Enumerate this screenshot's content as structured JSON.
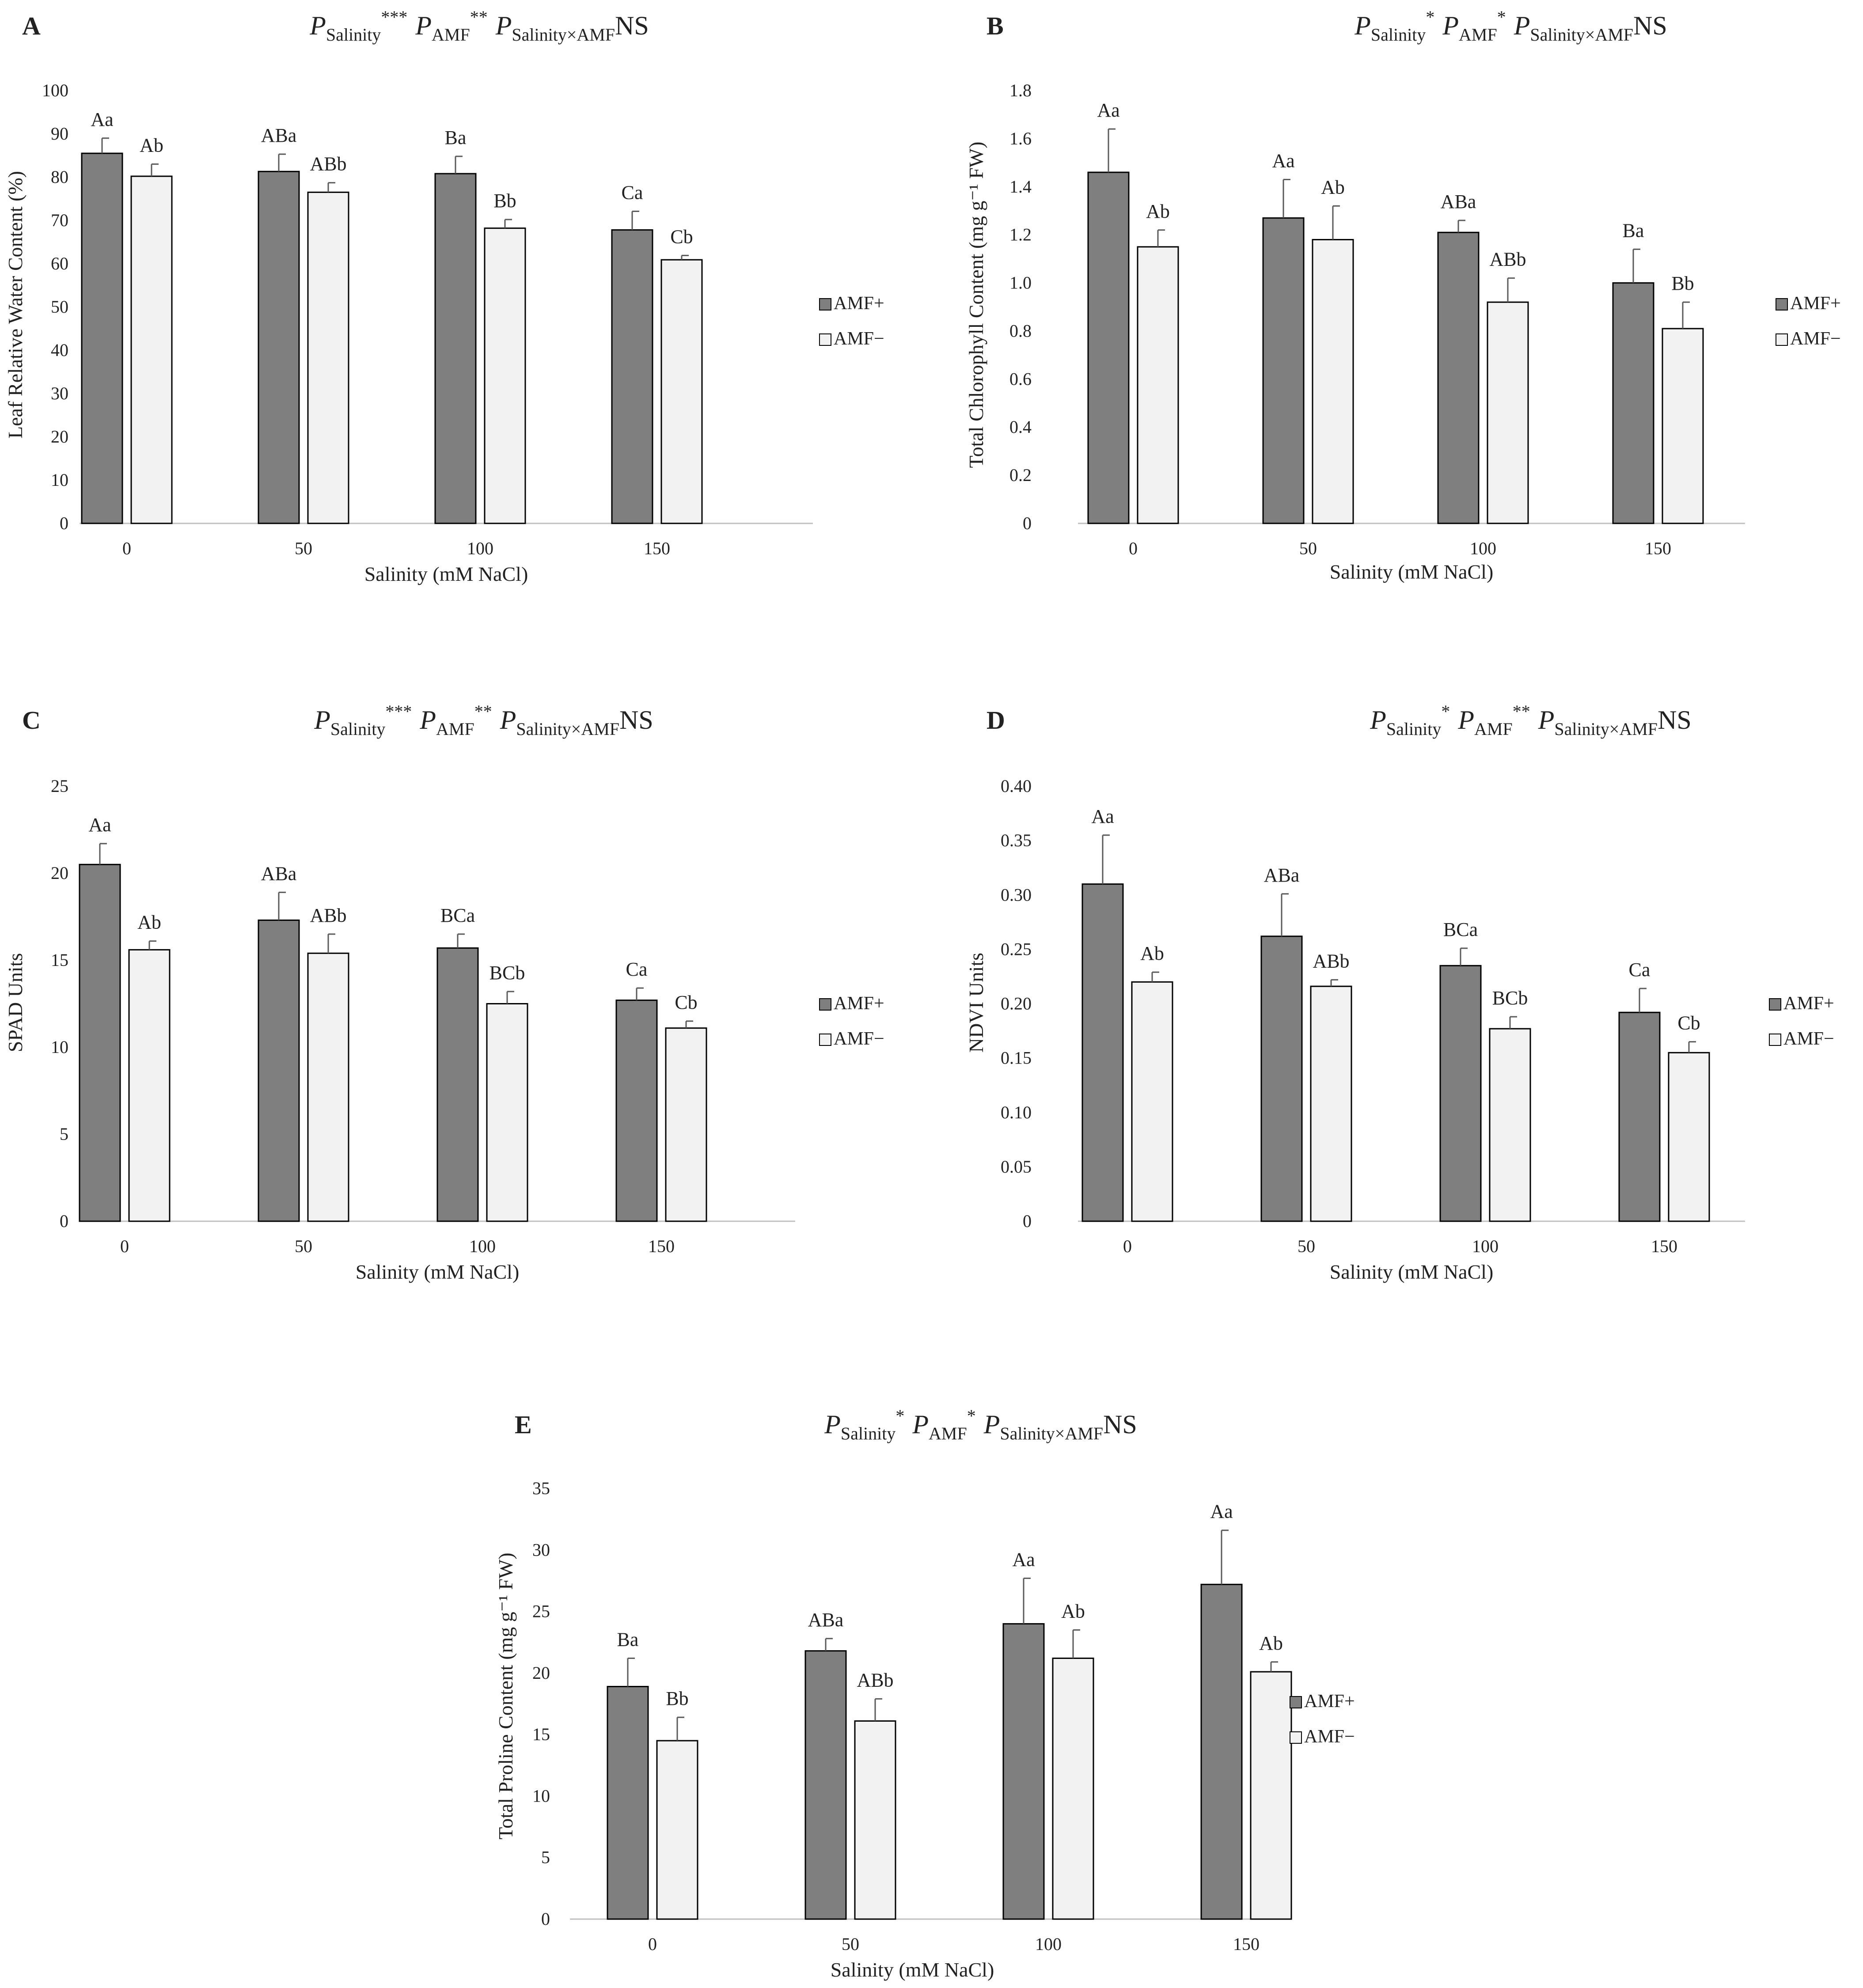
{
  "figure": {
    "legend": {
      "amf_plus": "AMF+",
      "amf_minus": "AMF−"
    },
    "colors": {
      "amf_plus": "#7f7f7f",
      "amf_minus": "#f2f2f2",
      "outline": "#000000",
      "axis": "#bfbfbf",
      "error": "#595959"
    },
    "stat_parts": {
      "p": "P",
      "salinity": "Salinity",
      "amf": "AMF",
      "interaction": "Salinity×AMF",
      "ns": "NS"
    }
  },
  "chart_data": [
    {
      "panel": "A",
      "type": "bar",
      "categories": [
        "0",
        "50",
        "100",
        "150"
      ],
      "series": [
        {
          "name": "AMF+",
          "values": [
            85.5,
            81.3,
            80.8,
            67.8
          ],
          "errors": [
            3.5,
            4.0,
            4.0,
            4.3
          ],
          "letters": [
            "Aa",
            "ABa",
            "Ba",
            "Ca"
          ]
        },
        {
          "name": "AMF−",
          "values": [
            80.2,
            76.5,
            68.2,
            60.9
          ],
          "errors": [
            2.8,
            2.2,
            2.0,
            1.0
          ],
          "letters": [
            "Ab",
            "ABb",
            "Bb",
            "Cb"
          ]
        }
      ],
      "significance": {
        "salinity": "***",
        "amf": "**"
      },
      "xlabel": "Salinity (mM NaCl)",
      "ylabel": "Leaf Relative Water Content (%)",
      "ylim": [
        0,
        100
      ],
      "yticks": [
        "0",
        "10",
        "20",
        "30",
        "40",
        "50",
        "60",
        "70",
        "80",
        "90",
        "100"
      ]
    },
    {
      "panel": "B",
      "type": "bar",
      "categories": [
        "0",
        "50",
        "100",
        "150"
      ],
      "series": [
        {
          "name": "AMF+",
          "values": [
            1.46,
            1.27,
            1.21,
            1.0
          ],
          "errors": [
            0.18,
            0.16,
            0.05,
            0.14
          ],
          "letters": [
            "Aa",
            "Aa",
            "ABa",
            "Ba"
          ]
        },
        {
          "name": "AMF−",
          "values": [
            1.15,
            1.18,
            0.92,
            0.81
          ],
          "errors": [
            0.07,
            0.14,
            0.1,
            0.11
          ],
          "letters": [
            "Ab",
            "Ab",
            "ABb",
            "Bb"
          ]
        }
      ],
      "significance": {
        "salinity": "*",
        "amf": "*"
      },
      "xlabel": "Salinity (mM NaCl)",
      "ylabel": "Total Chlorophyll Content (mg g⁻¹ FW)",
      "ylim": [
        0,
        1.8
      ],
      "yticks": [
        "0",
        "0.2",
        "0.4",
        "0.6",
        "0.8",
        "1.0",
        "1.2",
        "1.4",
        "1.6",
        "1.8"
      ]
    },
    {
      "panel": "C",
      "type": "bar",
      "categories": [
        "0",
        "50",
        "100",
        "150"
      ],
      "series": [
        {
          "name": "AMF+",
          "values": [
            20.5,
            17.3,
            15.7,
            12.7
          ],
          "errors": [
            1.2,
            1.6,
            0.8,
            0.7
          ],
          "letters": [
            "Aa",
            "ABa",
            "BCa",
            "Ca"
          ]
        },
        {
          "name": "AMF−",
          "values": [
            15.6,
            15.4,
            12.5,
            11.1
          ],
          "errors": [
            0.5,
            1.1,
            0.7,
            0.4
          ],
          "letters": [
            "Ab",
            "ABb",
            "BCb",
            "Cb"
          ]
        }
      ],
      "significance": {
        "salinity": "***",
        "amf": "**"
      },
      "xlabel": "Salinity (mM NaCl)",
      "ylabel": "SPAD Units",
      "ylim": [
        0,
        25
      ],
      "yticks": [
        "0",
        "5",
        "10",
        "15",
        "20",
        "25"
      ]
    },
    {
      "panel": "D",
      "type": "bar",
      "categories": [
        "0",
        "50",
        "100",
        "150"
      ],
      "series": [
        {
          "name": "AMF+",
          "values": [
            0.31,
            0.262,
            0.235,
            0.192
          ],
          "errors": [
            0.045,
            0.039,
            0.016,
            0.022
          ],
          "letters": [
            "Aa",
            "ABa",
            "BCa",
            "Ca"
          ]
        },
        {
          "name": "AMF−",
          "values": [
            0.22,
            0.216,
            0.177,
            0.155
          ],
          "errors": [
            0.009,
            0.006,
            0.011,
            0.01
          ],
          "letters": [
            "Ab",
            "ABb",
            "BCb",
            "Cb"
          ]
        }
      ],
      "significance": {
        "salinity": "*",
        "amf": "**"
      },
      "xlabel": "Salinity (mM NaCl)",
      "ylabel": "NDVI Units",
      "ylim": [
        0,
        0.4
      ],
      "yticks": [
        "0",
        "0.05",
        "0.10",
        "0.15",
        "0.20",
        "0.25",
        "0.30",
        "0.35",
        "0.40"
      ]
    },
    {
      "panel": "E",
      "type": "bar",
      "categories": [
        "0",
        "50",
        "100",
        "150"
      ],
      "series": [
        {
          "name": "AMF+",
          "values": [
            18.9,
            21.8,
            24.0,
            27.2
          ],
          "errors": [
            2.3,
            1.0,
            3.7,
            4.4
          ],
          "letters": [
            "Ba",
            "ABa",
            "Aa",
            "Aa"
          ]
        },
        {
          "name": "AMF−",
          "values": [
            14.5,
            16.1,
            21.2,
            20.1
          ],
          "errors": [
            1.9,
            1.8,
            2.3,
            0.8
          ],
          "letters": [
            "Bb",
            "ABb",
            "Ab",
            "Ab"
          ]
        }
      ],
      "significance": {
        "salinity": "*",
        "amf": "*"
      },
      "xlabel": "Salinity (mM NaCl)",
      "ylabel": "Total Proline Content (mg g⁻¹ FW)",
      "ylim": [
        0,
        35
      ],
      "yticks": [
        "0",
        "5",
        "10",
        "15",
        "20",
        "25",
        "30",
        "35"
      ]
    }
  ]
}
